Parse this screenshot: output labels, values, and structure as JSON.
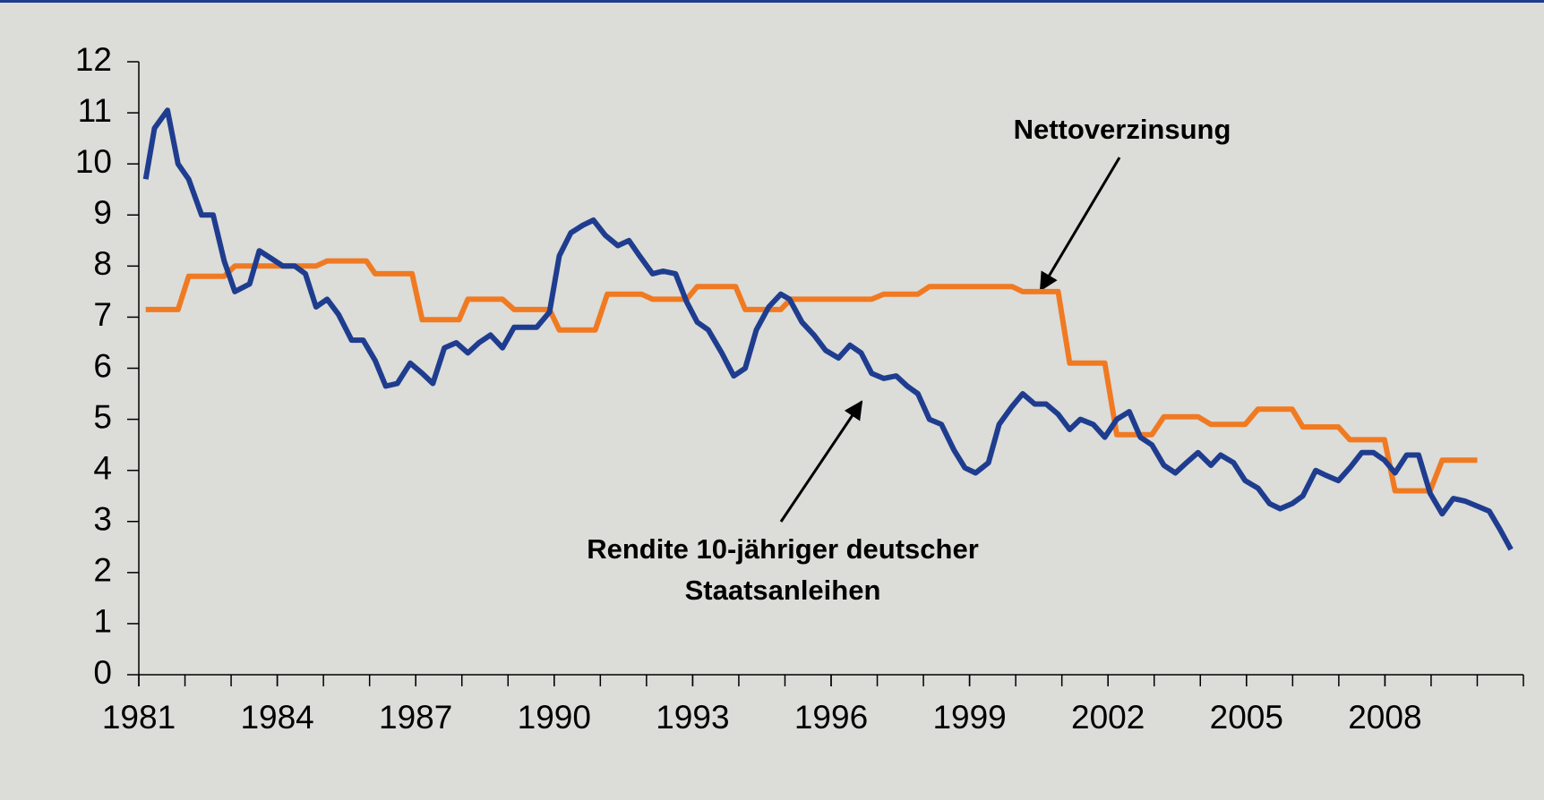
{
  "chart_data": {
    "type": "line",
    "xlim": [
      1981,
      2011
    ],
    "xticks": [
      1981,
      1984,
      1987,
      1990,
      1993,
      1996,
      1999,
      2002,
      2005,
      2008
    ],
    "xminor_ticks": [
      1981,
      1982,
      1983,
      1984,
      1985,
      1986,
      1987,
      1988,
      1989,
      1990,
      1991,
      1992,
      1993,
      1994,
      1995,
      1996,
      1997,
      1998,
      1999,
      2000,
      2001,
      2002,
      2003,
      2004,
      2005,
      2006,
      2007,
      2008,
      2009,
      2010,
      2011
    ],
    "ylim": [
      0,
      12
    ],
    "yticks": [
      0,
      1,
      2,
      3,
      4,
      5,
      6,
      7,
      8,
      9,
      10,
      11,
      12
    ],
    "grid": false,
    "series": [
      {
        "color": "#f07a22",
        "x": [
          1981.15,
          1981.85,
          1982.08,
          1982.85,
          1983.08,
          1984.84,
          1985.08,
          1985.93,
          1986.12,
          1986.92,
          1987.14,
          1987.94,
          1988.13,
          1988.88,
          1989.13,
          1989.9,
          1990.11,
          1990.89,
          1991.15,
          1991.89,
          1992.13,
          1992.87,
          1993.1,
          1993.93,
          1994.14,
          1994.91,
          1995.12,
          1996.88,
          1997.14,
          1997.88,
          1998.13,
          1999.92,
          2000.15,
          2000.92,
          2001.17,
          2001.93,
          2002.19,
          2002.95,
          2003.21,
          2003.95,
          2004.23,
          2004.97,
          2005.25,
          2005.99,
          2006.22,
          2006.99,
          2007.24,
          2007.99,
          2008.22,
          2008.98,
          2009.24,
          2010.0
        ],
        "values": [
          7.15,
          7.15,
          7.8,
          7.8,
          8.0,
          8.0,
          8.1,
          8.1,
          7.85,
          7.85,
          6.95,
          6.95,
          7.35,
          7.35,
          7.15,
          7.15,
          6.75,
          6.75,
          7.45,
          7.45,
          7.35,
          7.35,
          7.6,
          7.6,
          7.15,
          7.15,
          7.35,
          7.35,
          7.45,
          7.45,
          7.6,
          7.6,
          7.5,
          7.5,
          6.1,
          6.1,
          4.7,
          4.7,
          5.05,
          5.05,
          4.9,
          4.9,
          5.2,
          5.2,
          4.85,
          4.85,
          4.6,
          4.6,
          3.6,
          3.6,
          4.2,
          4.2
        ]
      },
      {
        "color": "#1f3d8f",
        "x": [
          1981.15,
          1981.34,
          1981.62,
          1981.85,
          1982.08,
          1982.36,
          1982.61,
          1982.85,
          1983.08,
          1983.4,
          1983.61,
          1983.87,
          1984.12,
          1984.38,
          1984.61,
          1984.84,
          1985.08,
          1985.33,
          1985.61,
          1985.86,
          1986.12,
          1986.35,
          1986.6,
          1986.88,
          1987.14,
          1987.37,
          1987.62,
          1987.88,
          1988.13,
          1988.37,
          1988.62,
          1988.88,
          1989.13,
          1989.39,
          1989.62,
          1989.9,
          1990.11,
          1990.36,
          1990.62,
          1990.85,
          1991.11,
          1991.38,
          1991.62,
          1991.85,
          1992.13,
          1992.36,
          1992.63,
          1992.87,
          1993.1,
          1993.34,
          1993.63,
          1993.89,
          1994.14,
          1994.38,
          1994.65,
          1994.91,
          1995.1,
          1995.37,
          1995.63,
          1995.88,
          1996.16,
          1996.41,
          1996.65,
          1996.88,
          1997.14,
          1997.41,
          1997.65,
          1997.88,
          1998.13,
          1998.39,
          1998.66,
          1998.9,
          1999.13,
          1999.41,
          1999.64,
          1999.92,
          2000.15,
          2000.41,
          2000.66,
          2000.92,
          2001.17,
          2001.4,
          2001.68,
          2001.93,
          2002.19,
          2002.46,
          2002.7,
          2002.95,
          2003.21,
          2003.46,
          2003.7,
          2003.95,
          2004.23,
          2004.44,
          2004.72,
          2004.97,
          2005.25,
          2005.5,
          2005.73,
          2005.99,
          2006.22,
          2006.5,
          2006.73,
          2006.99,
          2007.24,
          2007.5,
          2007.75,
          2007.99,
          2008.22,
          2008.47,
          2008.73,
          2008.98,
          2009.24,
          2009.48,
          2009.73,
          2010.0,
          2010.26,
          2010.49,
          2010.73
        ],
        "values": [
          9.7,
          10.7,
          11.05,
          10.0,
          9.7,
          9.0,
          9.0,
          8.1,
          7.5,
          7.65,
          8.3,
          8.15,
          8.0,
          8.0,
          7.85,
          7.2,
          7.35,
          7.05,
          6.55,
          6.55,
          6.15,
          5.65,
          5.7,
          6.1,
          5.9,
          5.7,
          6.4,
          6.5,
          6.3,
          6.5,
          6.65,
          6.4,
          6.8,
          6.8,
          6.8,
          7.1,
          8.2,
          8.65,
          8.8,
          8.9,
          8.6,
          8.4,
          8.5,
          8.2,
          7.85,
          7.9,
          7.85,
          7.3,
          6.9,
          6.75,
          6.3,
          5.85,
          6.0,
          6.75,
          7.2,
          7.45,
          7.35,
          6.9,
          6.65,
          6.35,
          6.2,
          6.45,
          6.3,
          5.9,
          5.8,
          5.85,
          5.65,
          5.5,
          5.0,
          4.9,
          4.4,
          4.05,
          3.95,
          4.15,
          4.9,
          5.25,
          5.5,
          5.3,
          5.3,
          5.1,
          4.8,
          5.0,
          4.9,
          4.65,
          5.0,
          5.15,
          4.65,
          4.5,
          4.1,
          3.95,
          4.15,
          4.35,
          4.1,
          4.3,
          4.15,
          3.8,
          3.65,
          3.35,
          3.25,
          3.35,
          3.5,
          4.0,
          3.9,
          3.8,
          4.05,
          4.35,
          4.35,
          4.2,
          3.95,
          4.3,
          4.3,
          3.55,
          3.15,
          3.45,
          3.4,
          3.3,
          3.2,
          2.85,
          2.45
        ]
      }
    ],
    "annotations": [
      {
        "text": [
          "Nettoverzinsung"
        ]
      },
      {
        "text": [
          "Rendite 10-jähriger deutscher",
          "Staatsanleihen"
        ]
      }
    ]
  }
}
